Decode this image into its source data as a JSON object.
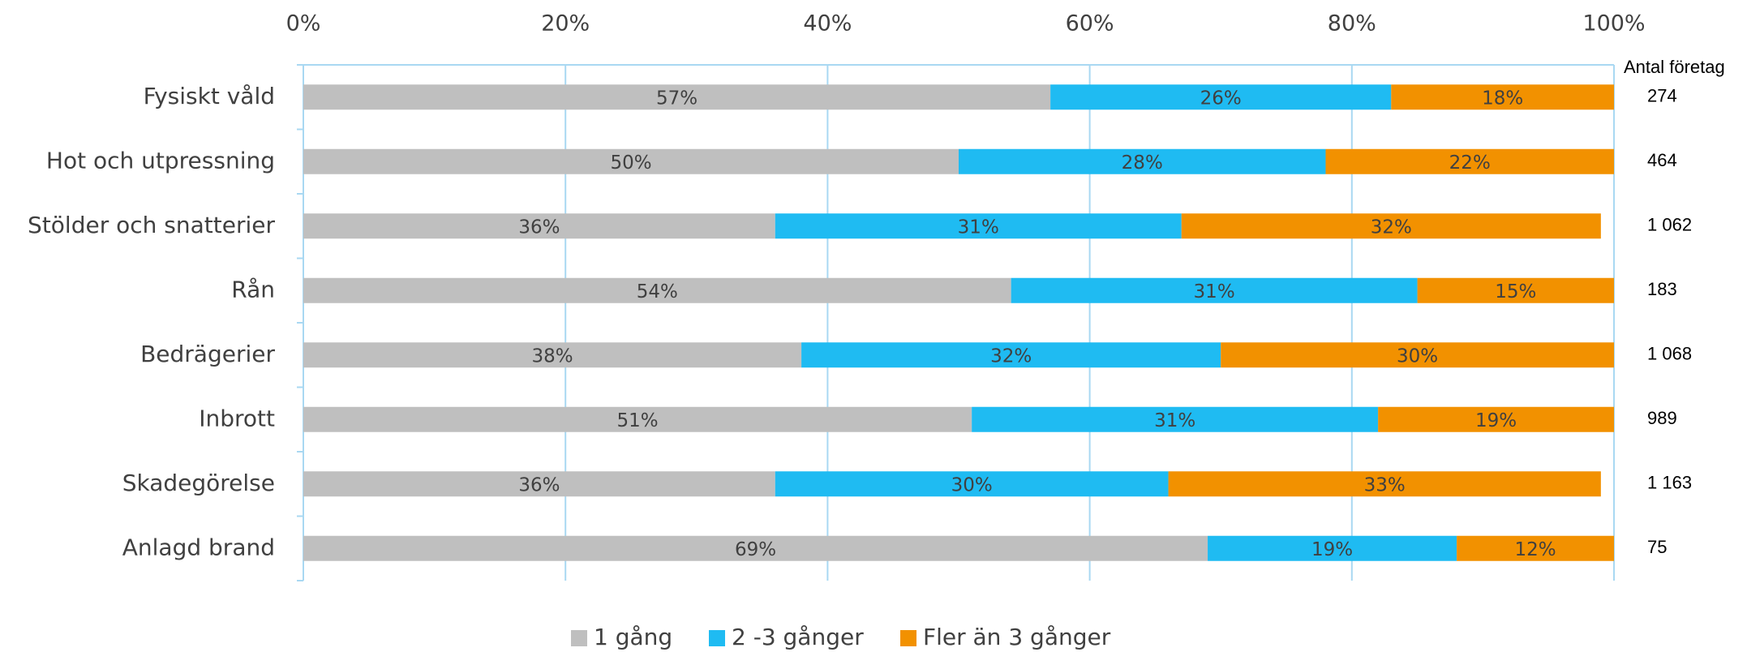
{
  "chart_data": {
    "type": "bar",
    "orientation": "horizontal",
    "stacked": true,
    "categories": [
      "Fysiskt våld",
      "Hot och utpressning",
      "Stölder och snatterier",
      "Rån",
      "Bedrägerier",
      "Inbrott",
      "Skadegörelse",
      "Anlagd brand"
    ],
    "series": [
      {
        "name": "1 gång",
        "color": "#bfbfbf",
        "values": [
          57,
          50,
          36,
          54,
          38,
          51,
          36,
          69
        ],
        "value_labels": [
          "57%",
          "50%",
          "36%",
          "54%",
          "38%",
          "51%",
          "36%",
          "69%"
        ]
      },
      {
        "name": "2 -3 gånger",
        "color": "#1fbbf2",
        "values": [
          26,
          28,
          31,
          31,
          32,
          31,
          30,
          19
        ],
        "value_labels": [
          "26%",
          "28%",
          "31%",
          "31%",
          "32%",
          "31%",
          "30%",
          "19%"
        ]
      },
      {
        "name": "Fler än 3 gånger",
        "color": "#f29100",
        "values": [
          18,
          22,
          32,
          15,
          30,
          19,
          33,
          12
        ],
        "value_labels": [
          "18%",
          "22%",
          "32%",
          "15%",
          "30%",
          "19%",
          "33%",
          "12%"
        ]
      }
    ],
    "xlim": [
      0,
      100
    ],
    "xticks": [
      {
        "value": 0,
        "label": "0%"
      },
      {
        "value": 20,
        "label": "20%"
      },
      {
        "value": 40,
        "label": "40%"
      },
      {
        "value": 60,
        "label": "60%"
      },
      {
        "value": 80,
        "label": "80%"
      },
      {
        "value": 100,
        "label": "100%"
      }
    ],
    "grid": true,
    "legend": "bottom",
    "count_header": "Antal företag",
    "counts": [
      "274",
      "464",
      "1 062",
      "183",
      "1 068",
      "989",
      "1 163",
      "75"
    ]
  }
}
